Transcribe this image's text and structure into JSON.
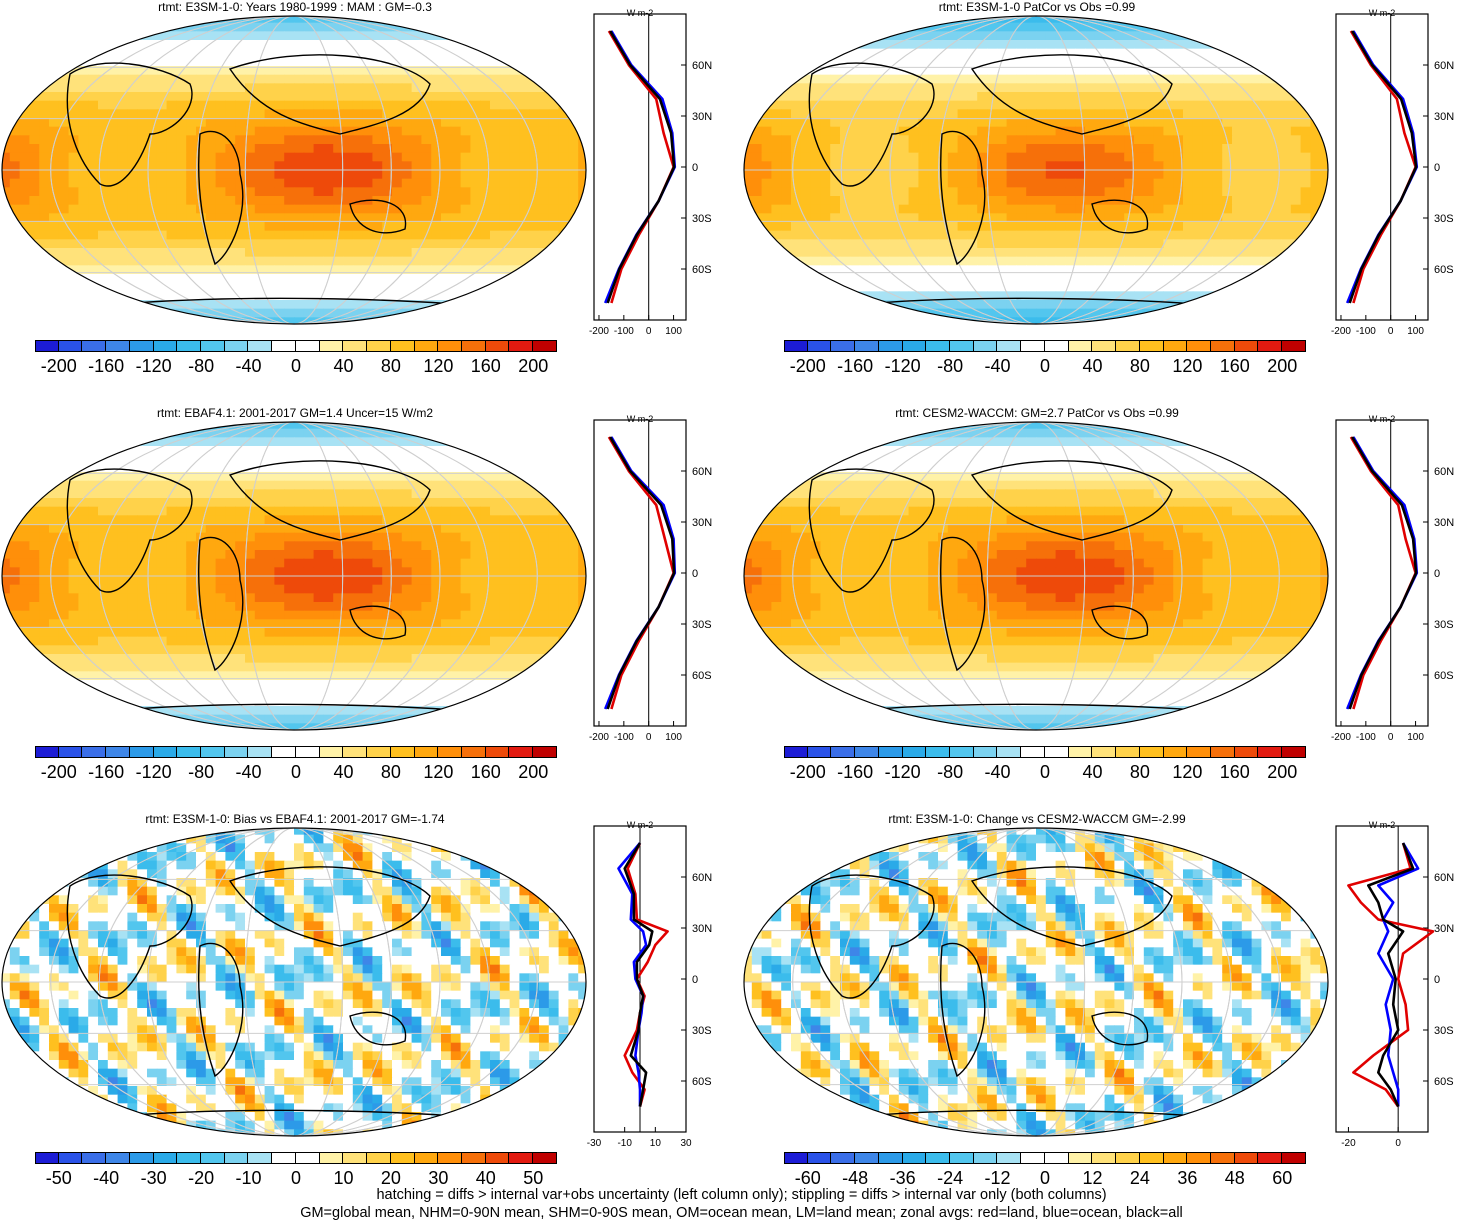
{
  "chart_data": [
    {
      "type": "heatmap",
      "panel": "top-left",
      "title": "rtmt: E3SM-1-0: Years 1980-1999 : MAM : GM=-0.3",
      "colorbar": {
        "ticks": [
          -200,
          -160,
          -120,
          -80,
          -40,
          0,
          40,
          80,
          120,
          160,
          200
        ],
        "levels": 22
      },
      "zonal_profile": {
        "unit": "W m-2",
        "xticks": [
          -200,
          -100,
          0,
          100
        ],
        "yticks": [
          "60N",
          "30N",
          "0",
          "30S",
          "60S"
        ],
        "lat": [
          80,
          60,
          40,
          20,
          0,
          -20,
          -40,
          -60,
          -80
        ],
        "series": [
          {
            "color": "#e00000",
            "values": [
              -160,
              -80,
              30,
              60,
              100,
              40,
              -40,
              -110,
              -150
            ]
          },
          {
            "color": "#0000ff",
            "values": [
              -150,
              -70,
              55,
              95,
              105,
              40,
              -50,
              -120,
              -175
            ]
          },
          {
            "color": "#000000",
            "values": [
              -155,
              -75,
              45,
              90,
              102,
              40,
              -48,
              -118,
              -165
            ]
          }
        ]
      }
    },
    {
      "type": "heatmap",
      "panel": "top-right",
      "title": "rtmt: E3SM-1-0 PatCor vs Obs =0.99",
      "colorbar": {
        "ticks": [
          -200,
          -160,
          -120,
          -80,
          -40,
          0,
          40,
          80,
          120,
          160,
          200
        ],
        "levels": 22
      },
      "zonal_profile": {
        "unit": "W m-2",
        "xticks": [
          -200,
          -100,
          0,
          100
        ],
        "yticks": [
          "60N",
          "30N",
          "0",
          "30S",
          "60S"
        ],
        "lat": [
          80,
          60,
          40,
          20,
          0,
          -20,
          -40,
          -60,
          -80
        ],
        "series": [
          {
            "color": "#e00000",
            "values": [
              -160,
              -80,
              25,
              55,
              100,
              40,
              -40,
              -110,
              -150
            ]
          },
          {
            "color": "#0000ff",
            "values": [
              -150,
              -70,
              50,
              90,
              105,
              40,
              -50,
              -120,
              -175
            ]
          },
          {
            "color": "#000000",
            "values": [
              -155,
              -75,
              42,
              85,
              102,
              40,
              -48,
              -118,
              -165
            ]
          }
        ]
      }
    },
    {
      "type": "heatmap",
      "panel": "middle-left",
      "title": "rtmt: EBAF4.1: 2001-2017 GM=1.4 Uncer=15 W/m2",
      "colorbar": {
        "ticks": [
          -200,
          -160,
          -120,
          -80,
          -40,
          0,
          40,
          80,
          120,
          160,
          200
        ],
        "levels": 22
      },
      "zonal_profile": {
        "unit": "W m-2",
        "xticks": [
          -200,
          -100,
          0,
          100
        ],
        "yticks": [
          "60N",
          "30N",
          "0",
          "30S",
          "60S"
        ],
        "lat": [
          80,
          60,
          40,
          20,
          0,
          -20,
          -40,
          -60,
          -80
        ],
        "series": [
          {
            "color": "#e00000",
            "values": [
              -160,
              -80,
              30,
              65,
              100,
              40,
              -40,
              -110,
              -150
            ]
          },
          {
            "color": "#0000ff",
            "values": [
              -150,
              -70,
              60,
              100,
              105,
              40,
              -50,
              -120,
              -175
            ]
          },
          {
            "color": "#000000",
            "values": [
              -155,
              -75,
              50,
              95,
              102,
              40,
              -48,
              -118,
              -165
            ]
          }
        ]
      }
    },
    {
      "type": "heatmap",
      "panel": "middle-right",
      "title": "rtmt: CESM2-WACCM: GM=2.7 PatCor vs Obs =0.99",
      "colorbar": {
        "ticks": [
          -200,
          -160,
          -120,
          -80,
          -40,
          0,
          40,
          80,
          120,
          160,
          200
        ],
        "levels": 22
      },
      "zonal_profile": {
        "unit": "W m-2",
        "xticks": [
          -200,
          -100,
          0,
          100
        ],
        "yticks": [
          "60N",
          "30N",
          "0",
          "30S",
          "60S"
        ],
        "lat": [
          80,
          60,
          40,
          20,
          0,
          -20,
          -40,
          -60,
          -80
        ],
        "series": [
          {
            "color": "#e00000",
            "values": [
              -160,
              -80,
              30,
              60,
              100,
              40,
              -40,
              -110,
              -150
            ]
          },
          {
            "color": "#0000ff",
            "values": [
              -150,
              -70,
              55,
              95,
              105,
              40,
              -50,
              -120,
              -175
            ]
          },
          {
            "color": "#000000",
            "values": [
              -155,
              -75,
              45,
              90,
              102,
              40,
              -48,
              -118,
              -165
            ]
          }
        ]
      }
    },
    {
      "type": "heatmap",
      "panel": "bottom-left",
      "title": "rtmt: E3SM-1-0: Bias vs EBAF4.1: 2001-2017 GM=-1.74",
      "colorbar": {
        "ticks": [
          -50,
          -40,
          -30,
          -20,
          -10,
          0,
          10,
          20,
          30,
          40,
          50
        ],
        "levels": 22
      },
      "zonal_profile": {
        "unit": "W m-2",
        "xticks": [
          -30,
          -10,
          10,
          30
        ],
        "yticks": [
          "60N",
          "30N",
          "0",
          "30S",
          "60S"
        ],
        "lat": [
          80,
          65,
          50,
          35,
          28,
          20,
          10,
          0,
          -10,
          -20,
          -30,
          -45,
          -55,
          -65,
          -75
        ],
        "series": [
          {
            "color": "#e00000",
            "values": [
              0,
              -8,
              -3,
              -2,
              18,
              10,
              5,
              -2,
              3,
              0,
              -2,
              -10,
              -5,
              3,
              0
            ]
          },
          {
            "color": "#0000ff",
            "values": [
              0,
              -14,
              -5,
              -6,
              2,
              4,
              -4,
              -3,
              2,
              1,
              -1,
              -3,
              -1,
              0,
              0
            ]
          },
          {
            "color": "#000000",
            "values": [
              0,
              -10,
              -4,
              -4,
              8,
              6,
              -2,
              -2,
              2,
              0,
              -1,
              -6,
              4,
              2,
              0
            ]
          }
        ]
      }
    },
    {
      "type": "heatmap",
      "panel": "bottom-right",
      "title": "rtmt: E3SM-1-0: Change vs CESM2-WACCM GM=-2.99",
      "colorbar": {
        "ticks": [
          -60,
          -48,
          -36,
          -24,
          -12,
          0,
          12,
          24,
          36,
          48,
          60
        ],
        "levels": 22
      },
      "zonal_profile": {
        "unit": "W m-2",
        "xticks": [
          -20,
          0
        ],
        "yticks": [
          "60N",
          "30N",
          "0",
          "30S",
          "60S"
        ],
        "lat": [
          80,
          65,
          55,
          45,
          35,
          28,
          15,
          0,
          -15,
          -30,
          -45,
          -55,
          -65,
          -75
        ],
        "series": [
          {
            "color": "#e00000",
            "values": [
              2,
              5,
              -20,
              -15,
              -8,
              14,
              2,
              0,
              3,
              4,
              -10,
              -18,
              -5,
              0
            ]
          },
          {
            "color": "#0000ff",
            "values": [
              2,
              8,
              -8,
              -2,
              -6,
              -4,
              -8,
              -2,
              -5,
              -3,
              -4,
              -2,
              0,
              0
            ]
          },
          {
            "color": "#000000",
            "values": [
              2,
              6,
              -12,
              -8,
              -6,
              2,
              -4,
              -1,
              -2,
              0,
              -6,
              -8,
              -3,
              0
            ]
          }
        ]
      }
    }
  ],
  "footer": {
    "line1": "hatching = diffs > internal var+obs uncertainty (left column only); stippling = diffs > internal var only (both columns)",
    "line2": "GM=global mean, NHM=0-90N mean, SHM=0-90S mean, OM=ocean mean, LM=land mean; zonal avgs: red=land, blue=ocean, black=all"
  },
  "colors": {
    "scale": [
      "#1c1cd6",
      "#2a52e8",
      "#3a6ee8",
      "#3e86e8",
      "#2c9ae8",
      "#2aaae8",
      "#3bbcec",
      "#52c6ee",
      "#7bd2f0",
      "#a8e2f4",
      "#ffffff",
      "#ffffff",
      "#fff2a8",
      "#ffe27a",
      "#ffd24a",
      "#ffc01f",
      "#ffa80f",
      "#ff8f0a",
      "#f6700a",
      "#ee4a0a",
      "#e21a10",
      "#c00000"
    ],
    "continent": "#000000",
    "grid": "#cfcfcf"
  }
}
